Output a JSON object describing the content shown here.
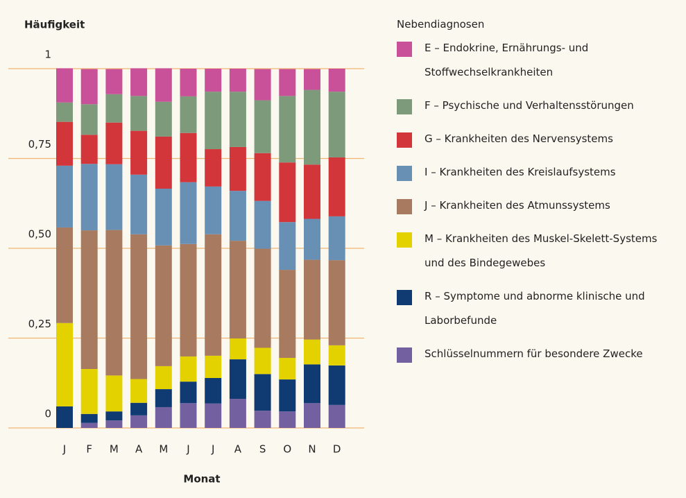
{
  "chart_data": {
    "type": "stacked_bar",
    "y_label": "Häufigkeit",
    "x_label": "Monat",
    "legend_title": "Nebendiagnosen",
    "categories": [
      "J",
      "F",
      "M",
      "A",
      "M",
      "J",
      "J",
      "A",
      "S",
      "O",
      "N",
      "D"
    ],
    "ylim": [
      0,
      1
    ],
    "yticks": [
      0,
      {
        "value": 0.25,
        "label": "0,25"
      },
      {
        "value": 0.5,
        "label": "0,50"
      },
      {
        "value": 0.75,
        "label": "0,75"
      },
      1
    ],
    "grid": true,
    "series": [
      {
        "name": "E – Endokrine, Ernährungs- und Stoffwechselkrankheiten",
        "color": "#c9519a",
        "values": [
          0.095,
          0.098,
          0.07,
          0.077,
          0.093,
          0.077,
          0.064,
          0.064,
          0.087,
          0.075,
          0.058,
          0.064
        ]
      },
      {
        "name": "F – Psychische und Verhaltensstörungen",
        "color": "#7d9b7b",
        "values": [
          0.054,
          0.085,
          0.079,
          0.097,
          0.097,
          0.102,
          0.16,
          0.154,
          0.147,
          0.185,
          0.208,
          0.183
        ]
      },
      {
        "name": "G – Krankheiten des Nervensystems",
        "color": "#d2353a",
        "values": [
          0.122,
          0.081,
          0.116,
          0.122,
          0.145,
          0.137,
          0.104,
          0.122,
          0.133,
          0.166,
          0.151,
          0.164
        ]
      },
      {
        "name": "I – Krankheiten des Kreislaufsystems",
        "color": "#6890b4",
        "values": [
          0.172,
          0.185,
          0.183,
          0.166,
          0.158,
          0.172,
          0.133,
          0.139,
          0.133,
          0.133,
          0.114,
          0.122
        ]
      },
      {
        "name": "J – Krankheiten des Atmunssystems",
        "color": "#a87b60",
        "values": [
          0.266,
          0.386,
          0.405,
          0.403,
          0.336,
          0.313,
          0.338,
          0.272,
          0.276,
          0.245,
          0.222,
          0.237
        ]
      },
      {
        "name": "M – Krankheiten des Muskel-Skelett-Systems und des Bindegewebes",
        "color": "#e4d200",
        "values": [
          0.232,
          0.125,
          0.1,
          0.066,
          0.064,
          0.07,
          0.062,
          0.058,
          0.073,
          0.06,
          0.069,
          0.056
        ]
      },
      {
        "name": "R – Symptome und abnorme klinische und Laborbefunde",
        "color": "#0f3a72",
        "values": [
          0.06,
          0.025,
          0.025,
          0.035,
          0.05,
          0.06,
          0.071,
          0.11,
          0.102,
          0.089,
          0.108,
          0.11
        ]
      },
      {
        "name": "Schlüsselnummern für besondere Zwecke",
        "color": "#7360a0",
        "values": [
          0,
          0.014,
          0.021,
          0.035,
          0.058,
          0.069,
          0.068,
          0.081,
          0.048,
          0.046,
          0.069,
          0.064
        ]
      }
    ]
  }
}
